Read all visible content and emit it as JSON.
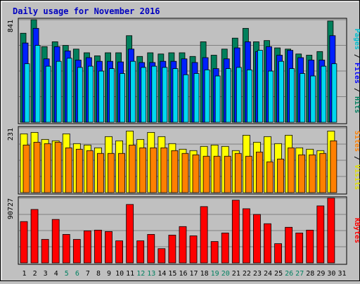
{
  "chart_data": {
    "type": "bar",
    "title": "Daily usage for November 2016",
    "categories": [
      "1",
      "2",
      "3",
      "4",
      "5",
      "6",
      "7",
      "8",
      "9",
      "10",
      "11",
      "12",
      "13",
      "14",
      "15",
      "16",
      "17",
      "18",
      "19",
      "20",
      "21",
      "22",
      "23",
      "24",
      "25",
      "26",
      "27",
      "28",
      "29",
      "30",
      "31"
    ],
    "weekend_days": [
      "5",
      "6",
      "12",
      "13",
      "19",
      "20",
      "26",
      "27"
    ],
    "panels": [
      {
        "name": "hits-files-pages",
        "max_label": "841",
        "ylim": [
          0,
          841
        ],
        "axis_labels": [
          {
            "text": "Pages",
            "color": "#00c0d0"
          },
          {
            "text": " / ",
            "color": "#000000"
          },
          {
            "text": "Files",
            "color": "#0000ff"
          },
          {
            "text": " / ",
            "color": "#000000"
          },
          {
            "text": "Hits",
            "color": "#008060"
          }
        ],
        "series": [
          {
            "name": "Hits",
            "color": "#00805c",
            "values": [
              730,
              841,
              620,
              660,
              630,
              600,
              570,
              545,
              570,
              570,
              710,
              540,
              570,
              560,
              570,
              570,
              540,
              660,
              550,
              600,
              690,
              770,
              660,
              670,
              610,
              600,
              560,
              550,
              580,
              830,
              null
            ]
          },
          {
            "name": "Files",
            "color": "#0020ff",
            "values": [
              650,
              770,
              520,
              620,
              585,
              510,
              530,
              500,
              500,
              495,
              600,
              490,
              490,
              500,
              500,
              520,
              490,
              530,
              440,
              520,
              610,
              660,
              580,
              620,
              550,
              590,
              530,
              510,
              510,
              710,
              null
            ]
          },
          {
            "name": "Pages",
            "color": "#00d8f0",
            "values": [
              480,
              630,
              460,
              500,
              525,
              450,
              460,
              420,
              440,
              400,
              500,
              450,
              460,
              450,
              440,
              390,
              400,
              430,
              380,
              440,
              450,
              430,
              590,
              420,
              500,
              440,
              400,
              380,
              460,
              480,
              null
            ]
          }
        ]
      },
      {
        "name": "visits-sites",
        "max_label": "231",
        "ylim": [
          0,
          231
        ],
        "axis_labels": [
          {
            "text": "Sites",
            "color": "#ff8000"
          },
          {
            "text": " / ",
            "color": "#000000"
          },
          {
            "text": "Visits",
            "color": "#e0e000"
          }
        ],
        "series": [
          {
            "name": "Visits",
            "color": "#ffff00",
            "values": [
              210,
              215,
              190,
              185,
              210,
              175,
              170,
              160,
              200,
              185,
              220,
              190,
              215,
              200,
              175,
              155,
              150,
              165,
              170,
              165,
              150,
              205,
              180,
              200,
              175,
              205,
              160,
              155,
              150,
              220,
              null
            ]
          },
          {
            "name": "Sites",
            "color": "#ff8000",
            "values": [
              170,
              180,
              175,
              180,
              160,
              155,
              150,
              140,
              140,
              140,
              170,
              160,
              160,
              160,
              150,
              140,
              135,
              130,
              130,
              130,
              140,
              130,
              145,
              110,
              120,
              160,
              135,
              135,
              140,
              185,
              null
            ]
          }
        ]
      },
      {
        "name": "kbytes",
        "max_label": "90727",
        "ylim": [
          0,
          90727
        ],
        "axis_labels": [
          {
            "text": "KBytes",
            "color": "#ff0000"
          }
        ],
        "series": [
          {
            "name": "KBytes",
            "color": "#ff0000",
            "values": [
              58000,
              75000,
              33000,
              61000,
              40000,
              33000,
              45000,
              46000,
              44000,
              31000,
              82000,
              31000,
              40000,
              20000,
              39000,
              51000,
              38000,
              79000,
              30000,
              42000,
              88000,
              76000,
              68000,
              55000,
              27000,
              50000,
              42000,
              46000,
              80000,
              91000,
              null
            ]
          }
        ]
      }
    ]
  }
}
